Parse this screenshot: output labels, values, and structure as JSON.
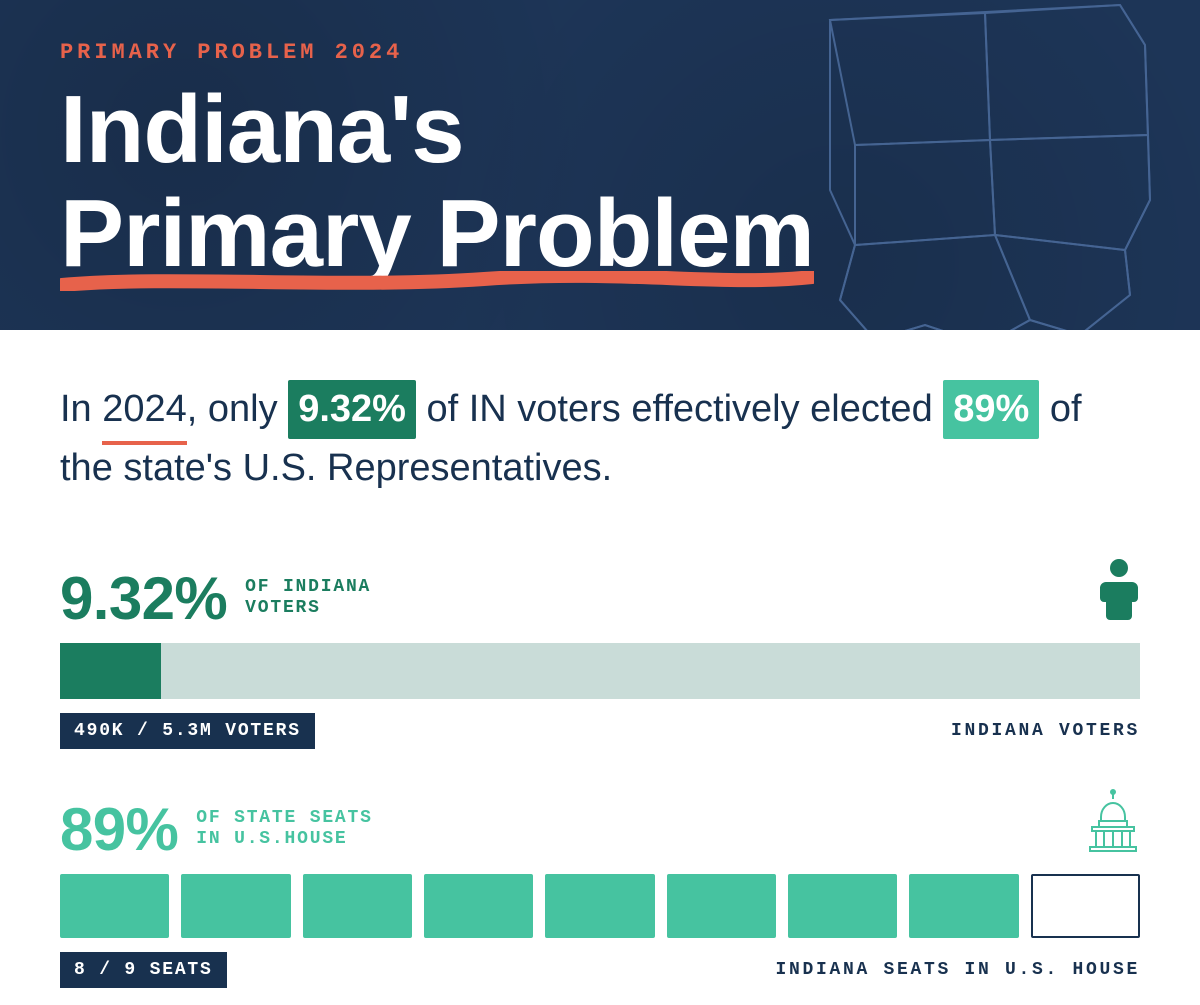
{
  "colors": {
    "navy": "#1d3557",
    "navy_text": "#18314f",
    "accent": "#e7624b",
    "teal_dark": "#1b7d5f",
    "teal": "#46c3a0",
    "teal_track": "#c9dcd8",
    "map_stroke": "#4a6a9a",
    "white": "#ffffff"
  },
  "hero": {
    "eyebrow": "PRIMARY PROBLEM 2024",
    "title_line1": "Indiana's",
    "title_line2": "Primary Problem"
  },
  "lede": {
    "segments": [
      {
        "text": "In "
      },
      {
        "text": "2024",
        "year_underline": true
      },
      {
        "text": ", only "
      },
      {
        "text": "9.32%",
        "pill": "teal_dark"
      },
      {
        "text": " of IN voters effectively elected "
      },
      {
        "text": "89%",
        "pill": "teal"
      },
      {
        "text": " of the state's U.S. Representatives."
      }
    ]
  },
  "voters": {
    "pct": "9.32%",
    "sub_line1": "OF INDIANA",
    "sub_line2": "VOTERS",
    "bar_fill_pct": 9.32,
    "badge": "490K / 5.3M VOTERS",
    "caption": "INDIANA VOTERS"
  },
  "seats": {
    "pct": "89%",
    "sub_line1": "OF STATE SEATS",
    "sub_line2": "IN U.S.HOUSE",
    "filled": 8,
    "total": 9,
    "badge": "8 / 9 SEATS",
    "caption": "INDIANA SEATS IN U.S. HOUSE"
  }
}
